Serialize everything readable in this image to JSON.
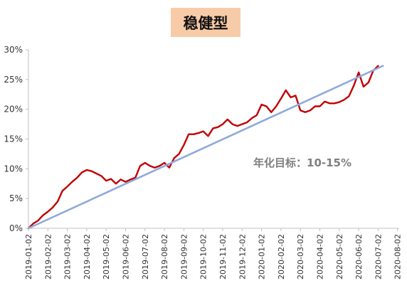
{
  "chart_data": {
    "type": "line",
    "title": "稳健型",
    "annotation": "年化目标：10-15%",
    "xlabel": "",
    "ylabel": "",
    "ylim": [
      0,
      30
    ],
    "yticks": [
      "0%",
      "5%",
      "10%",
      "15%",
      "20%",
      "25%",
      "30%"
    ],
    "xticks": [
      "2019-01-02",
      "2019-02-02",
      "2019-03-02",
      "2019-04-02",
      "2019-05-02",
      "2019-06-02",
      "2019-07-02",
      "2019-08-02",
      "2019-09-02",
      "2019-10-02",
      "2019-11-02",
      "2019-12-02",
      "2020-01-02",
      "2020-02-02",
      "2020-03-02",
      "2020-04-02",
      "2020-05-02",
      "2020-06-02",
      "2020-07-02",
      "2020-08-02"
    ],
    "grid": false,
    "colors": {
      "portfolio": "#c00000",
      "target": "#8eaadb",
      "title_bg": "#f8cba8",
      "annotation": "#7f7f7f"
    },
    "series": [
      {
        "key": "portfolio",
        "points": [
          [
            0,
            0
          ],
          [
            0.25,
            0.8
          ],
          [
            0.5,
            1.3
          ],
          [
            0.75,
            2.2
          ],
          [
            1.0,
            2.8
          ],
          [
            1.25,
            3.5
          ],
          [
            1.5,
            4.5
          ],
          [
            1.75,
            6.3
          ],
          [
            2.0,
            7.0
          ],
          [
            2.25,
            7.8
          ],
          [
            2.5,
            8.5
          ],
          [
            2.75,
            9.4
          ],
          [
            3.0,
            9.8
          ],
          [
            3.25,
            9.6
          ],
          [
            3.5,
            9.2
          ],
          [
            3.75,
            8.8
          ],
          [
            4.0,
            8.0
          ],
          [
            4.25,
            8.3
          ],
          [
            4.5,
            7.5
          ],
          [
            4.75,
            8.2
          ],
          [
            5.0,
            7.8
          ],
          [
            5.25,
            8.2
          ],
          [
            5.5,
            8.5
          ],
          [
            5.75,
            10.5
          ],
          [
            6.0,
            11.0
          ],
          [
            6.25,
            10.5
          ],
          [
            6.5,
            10.2
          ],
          [
            6.75,
            10.5
          ],
          [
            7.0,
            11.0
          ],
          [
            7.25,
            10.2
          ],
          [
            7.5,
            11.8
          ],
          [
            7.75,
            12.5
          ],
          [
            8.0,
            14.0
          ],
          [
            8.25,
            15.8
          ],
          [
            8.5,
            15.8
          ],
          [
            8.75,
            16.0
          ],
          [
            9.0,
            16.3
          ],
          [
            9.25,
            15.5
          ],
          [
            9.5,
            16.8
          ],
          [
            9.75,
            17.0
          ],
          [
            10.0,
            17.5
          ],
          [
            10.25,
            18.3
          ],
          [
            10.5,
            17.5
          ],
          [
            10.75,
            17.2
          ],
          [
            11.0,
            17.5
          ],
          [
            11.25,
            17.8
          ],
          [
            11.5,
            18.5
          ],
          [
            11.75,
            19.0
          ],
          [
            12.0,
            20.8
          ],
          [
            12.25,
            20.5
          ],
          [
            12.5,
            19.5
          ],
          [
            12.75,
            20.5
          ],
          [
            13.0,
            21.8
          ],
          [
            13.25,
            23.2
          ],
          [
            13.5,
            22.0
          ],
          [
            13.75,
            22.3
          ],
          [
            14.0,
            19.8
          ],
          [
            14.25,
            19.5
          ],
          [
            14.5,
            19.8
          ],
          [
            14.75,
            20.5
          ],
          [
            15.0,
            20.5
          ],
          [
            15.25,
            21.3
          ],
          [
            15.5,
            21.0
          ],
          [
            15.75,
            21.0
          ],
          [
            16.0,
            21.2
          ],
          [
            16.25,
            21.6
          ],
          [
            16.5,
            22.2
          ],
          [
            16.75,
            24.0
          ],
          [
            17.0,
            26.2
          ],
          [
            17.25,
            23.8
          ],
          [
            17.5,
            24.5
          ],
          [
            17.75,
            26.5
          ],
          [
            18.0,
            27.3
          ]
        ]
      },
      {
        "key": "target",
        "points": [
          [
            0,
            0
          ],
          [
            18.25,
            27.3
          ]
        ]
      }
    ]
  }
}
